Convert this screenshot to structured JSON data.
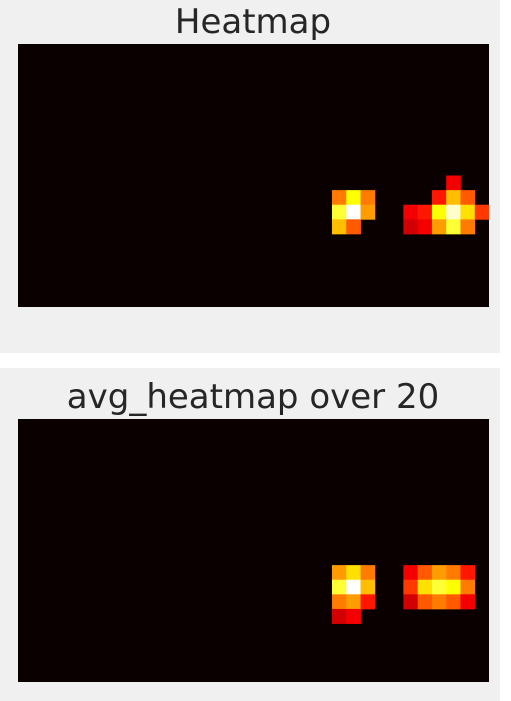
{
  "chart_data": [
    {
      "type": "heatmap",
      "title": "Heatmap",
      "grid": false,
      "colormap": "hot",
      "background_color": "#0a0000",
      "grid_size": {
        "cols": 33,
        "rows": 18
      },
      "cells": [
        {
          "col": 22,
          "row": 10,
          "value": 0.55
        },
        {
          "col": 23,
          "row": 10,
          "value": 0.75
        },
        {
          "col": 24,
          "row": 10,
          "value": 0.55
        },
        {
          "col": 22,
          "row": 11,
          "value": 0.8
        },
        {
          "col": 23,
          "row": 11,
          "value": 1.0
        },
        {
          "col": 24,
          "row": 11,
          "value": 0.6
        },
        {
          "col": 22,
          "row": 12,
          "value": 0.65
        },
        {
          "col": 23,
          "row": 12,
          "value": 0.5
        },
        {
          "col": 30,
          "row": 9,
          "value": 0.35
        },
        {
          "col": 29,
          "row": 10,
          "value": 0.4
        },
        {
          "col": 30,
          "row": 10,
          "value": 0.65
        },
        {
          "col": 31,
          "row": 10,
          "value": 0.5
        },
        {
          "col": 27,
          "row": 11,
          "value": 0.35
        },
        {
          "col": 28,
          "row": 11,
          "value": 0.4
        },
        {
          "col": 29,
          "row": 11,
          "value": 0.75
        },
        {
          "col": 30,
          "row": 11,
          "value": 0.95
        },
        {
          "col": 31,
          "row": 11,
          "value": 0.7
        },
        {
          "col": 32,
          "row": 11,
          "value": 0.45
        },
        {
          "col": 27,
          "row": 12,
          "value": 0.3
        },
        {
          "col": 28,
          "row": 12,
          "value": 0.35
        },
        {
          "col": 29,
          "row": 12,
          "value": 0.6
        },
        {
          "col": 30,
          "row": 12,
          "value": 0.8
        },
        {
          "col": 31,
          "row": 12,
          "value": 0.55
        }
      ]
    },
    {
      "type": "heatmap",
      "title": "avg_heatmap over 20",
      "grid": false,
      "colormap": "hot",
      "background_color": "#0a0000",
      "grid_size": {
        "cols": 33,
        "rows": 18
      },
      "cells": [
        {
          "col": 22,
          "row": 10,
          "value": 0.6
        },
        {
          "col": 23,
          "row": 10,
          "value": 0.7
        },
        {
          "col": 24,
          "row": 10,
          "value": 0.55
        },
        {
          "col": 22,
          "row": 11,
          "value": 0.8
        },
        {
          "col": 23,
          "row": 11,
          "value": 1.0
        },
        {
          "col": 24,
          "row": 11,
          "value": 0.65
        },
        {
          "col": 22,
          "row": 12,
          "value": 0.55
        },
        {
          "col": 23,
          "row": 12,
          "value": 0.6
        },
        {
          "col": 24,
          "row": 12,
          "value": 0.4
        },
        {
          "col": 22,
          "row": 13,
          "value": 0.3
        },
        {
          "col": 23,
          "row": 13,
          "value": 0.35
        },
        {
          "col": 27,
          "row": 10,
          "value": 0.35
        },
        {
          "col": 28,
          "row": 10,
          "value": 0.5
        },
        {
          "col": 29,
          "row": 10,
          "value": 0.6
        },
        {
          "col": 30,
          "row": 10,
          "value": 0.55
        },
        {
          "col": 31,
          "row": 10,
          "value": 0.4
        },
        {
          "col": 27,
          "row": 11,
          "value": 0.45
        },
        {
          "col": 28,
          "row": 11,
          "value": 0.7
        },
        {
          "col": 29,
          "row": 11,
          "value": 0.8
        },
        {
          "col": 30,
          "row": 11,
          "value": 0.75
        },
        {
          "col": 31,
          "row": 11,
          "value": 0.55
        },
        {
          "col": 27,
          "row": 12,
          "value": 0.3
        },
        {
          "col": 28,
          "row": 12,
          "value": 0.5
        },
        {
          "col": 29,
          "row": 12,
          "value": 0.55
        },
        {
          "col": 30,
          "row": 12,
          "value": 0.5
        },
        {
          "col": 31,
          "row": 12,
          "value": 0.35
        }
      ]
    }
  ]
}
